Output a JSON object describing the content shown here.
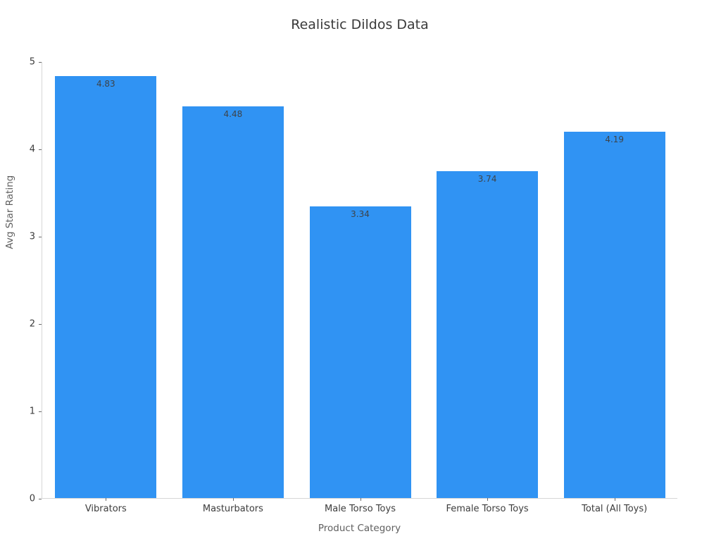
{
  "chart_data": {
    "type": "bar",
    "title": "Realistic Dildos Data",
    "xlabel": "Product Category",
    "ylabel": "Avg Star Rating",
    "categories": [
      "Vibrators",
      "Masturbators",
      "Male Torso Toys",
      "Female Torso Toys",
      "Total (All Toys)"
    ],
    "values": [
      4.83,
      4.48,
      3.34,
      3.74,
      4.19
    ],
    "value_labels": [
      "4.83",
      "4.48",
      "3.34",
      "3.74",
      "4.19"
    ],
    "ylim": [
      0,
      5
    ],
    "yticks": [
      "0",
      "1",
      "2",
      "3",
      "4",
      "5"
    ],
    "grid": false,
    "legend": null,
    "bar_color": "#3093f3",
    "value_label_color": "#3d4349",
    "background_color": "#ffffff"
  }
}
